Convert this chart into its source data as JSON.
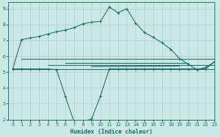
{
  "bg_color": "#cce8e4",
  "line_color": "#1a6b6b",
  "grid_color": "#aacfcc",
  "xlabel": "Humidex (Indice chaleur)",
  "xlim": [
    -0.5,
    23
  ],
  "ylim": [
    2,
    9.4
  ],
  "yticks": [
    2,
    3,
    4,
    5,
    6,
    7,
    8,
    9
  ],
  "xticks": [
    0,
    1,
    2,
    3,
    4,
    5,
    6,
    7,
    8,
    9,
    10,
    11,
    12,
    13,
    14,
    15,
    16,
    17,
    18,
    19,
    20,
    21,
    22,
    23
  ],
  "main_x": [
    0,
    1,
    2,
    3,
    4,
    5,
    6,
    7,
    8,
    9,
    10,
    11,
    12,
    13,
    14,
    15,
    16,
    17,
    18,
    19,
    20,
    21,
    22,
    23
  ],
  "main_y": [
    5.2,
    7.05,
    7.15,
    7.25,
    7.4,
    7.55,
    7.65,
    7.8,
    8.05,
    8.15,
    8.2,
    9.1,
    8.75,
    9.0,
    8.1,
    7.5,
    7.2,
    6.85,
    6.45,
    5.85,
    5.5,
    5.15,
    5.3,
    5.65
  ],
  "dip_x": [
    0,
    1,
    2,
    3,
    4,
    5,
    6,
    7,
    8,
    9,
    10,
    11,
    12,
    13,
    14,
    15,
    16,
    17,
    18,
    19,
    20,
    21,
    22,
    23
  ],
  "dip_y": [
    5.2,
    5.2,
    5.2,
    5.2,
    5.2,
    5.15,
    3.45,
    1.85,
    1.85,
    2.05,
    3.5,
    5.2,
    5.2,
    5.2,
    5.2,
    5.2,
    5.2,
    5.2,
    5.2,
    5.2,
    5.2,
    5.2,
    5.2,
    5.65
  ],
  "flat_lines": [
    {
      "x": [
        0,
        23
      ],
      "y": [
        5.2,
        5.2
      ]
    },
    {
      "x": [
        1,
        23
      ],
      "y": [
        5.85,
        5.85
      ]
    },
    {
      "x": [
        4,
        23
      ],
      "y": [
        5.45,
        5.45
      ]
    },
    {
      "x": [
        6,
        20
      ],
      "y": [
        5.55,
        5.55
      ]
    },
    {
      "x": [
        9,
        19
      ],
      "y": [
        5.35,
        5.38
      ]
    }
  ]
}
